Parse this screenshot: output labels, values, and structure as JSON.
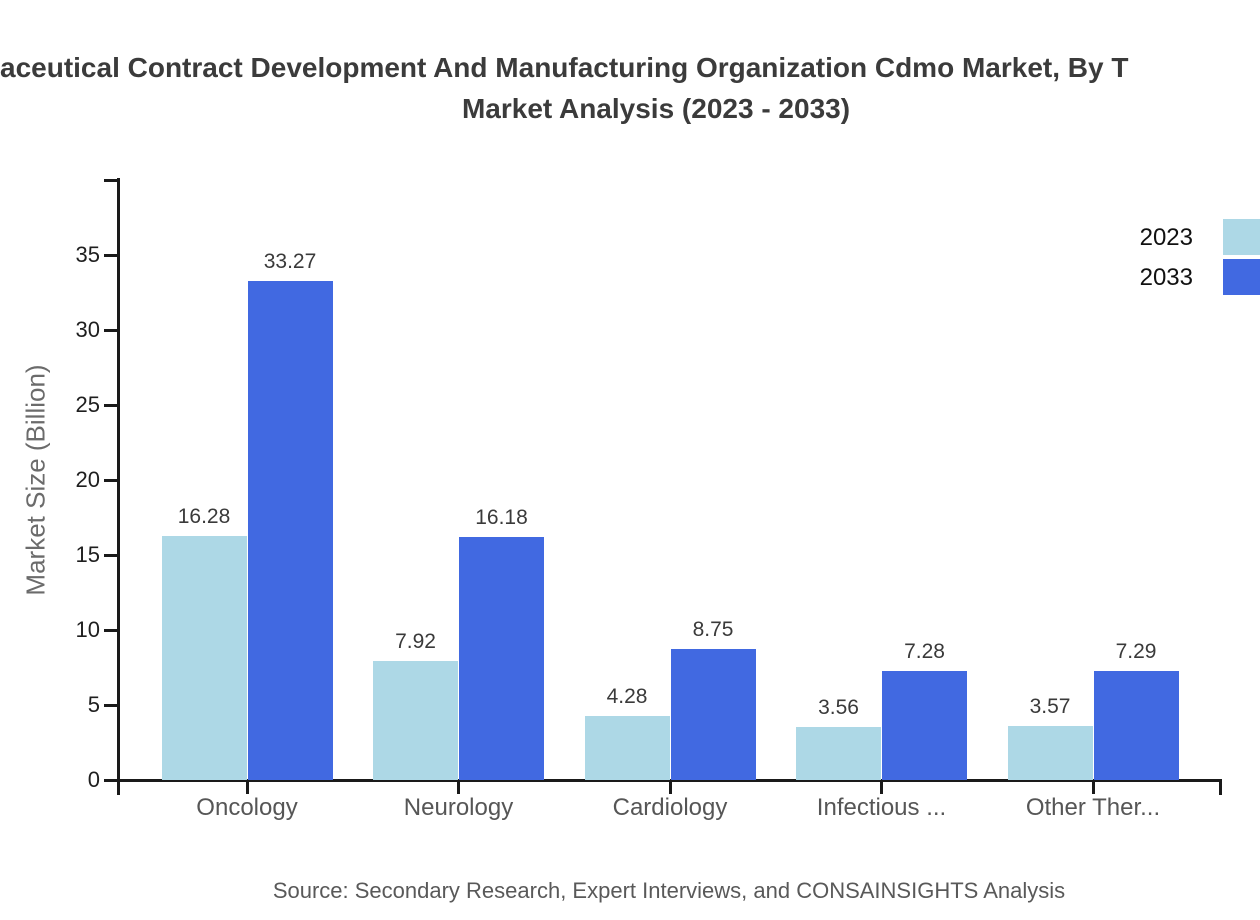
{
  "title": {
    "line1_visible": "aceutical Contract Development And Manufacturing Organization Cdmo Market, By T",
    "line2": "Market Analysis (2023 - 2033)"
  },
  "source_note": "Source: Secondary Research, Expert Interviews, and CONSAINSIGHTS Analysis",
  "chart_data": {
    "type": "bar",
    "title": "aceutical Contract Development And Manufacturing Organization Cdmo Market, By T… Market Analysis (2023 - 2033)",
    "categories": [
      "Oncology",
      "Neurology",
      "Cardiology",
      "Infectious ...",
      "Other Ther..."
    ],
    "series": [
      {
        "name": "2023",
        "color": "#ADD8E6",
        "values": [
          16.28,
          7.92,
          4.28,
          3.56,
          3.57
        ]
      },
      {
        "name": "2033",
        "color": "#4169E1",
        "values": [
          33.27,
          16.18,
          8.75,
          7.28,
          7.29
        ]
      }
    ],
    "xlabel": "",
    "ylabel": "Market Size (Billion)",
    "ylim": [
      0,
      40
    ],
    "yticks": [
      0,
      5,
      10,
      15,
      20,
      25,
      30,
      35
    ],
    "grid": false,
    "legend_position": "top-right",
    "bar_value_labels": true,
    "axis_color": "#1a1a1a",
    "value_label_color": "#3a3a3a",
    "category_label_color": "#565656"
  }
}
